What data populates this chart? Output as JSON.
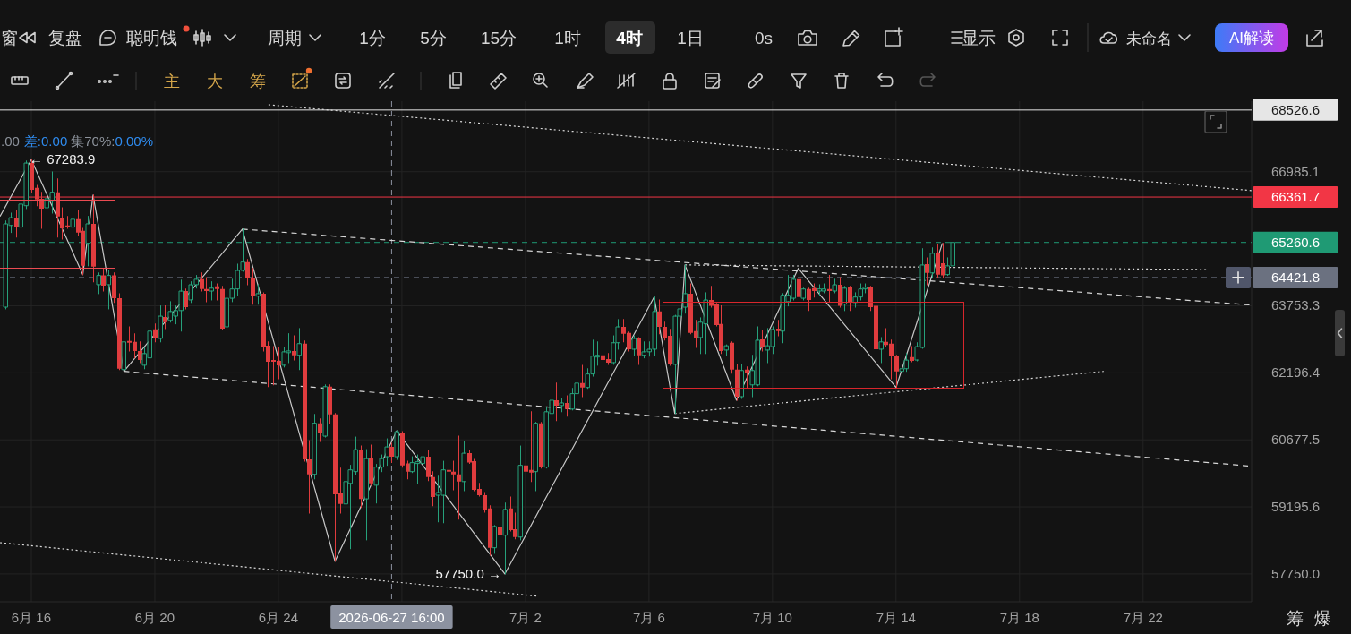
{
  "chart_data": {
    "type": "candlestick",
    "log": true,
    "grid": true,
    "xlim": [
      "2026-06-14T23:40",
      "2026-07-25T12:20"
    ],
    "ylim": [
      57160,
      68750
    ],
    "xticks": [
      {
        "value": "2026-06-16",
        "label": "6月 16"
      },
      {
        "value": "2026-06-20",
        "label": "6月 20"
      },
      {
        "value": "2026-06-24",
        "label": "6月 24"
      },
      {
        "value": "2026-06-28",
        "label": null
      },
      {
        "value": "2026-07-02",
        "label": "7月 2"
      },
      {
        "value": "2026-07-06",
        "label": "7月 6"
      },
      {
        "value": "2026-07-10",
        "label": "7月 10"
      },
      {
        "value": "2026-07-14",
        "label": "7月 14"
      },
      {
        "value": "2026-07-18",
        "label": "7月 18"
      },
      {
        "value": "2026-07-22",
        "label": "7月 22"
      }
    ],
    "yticks": [
      {
        "value": 57750,
        "label": "57750.0"
      },
      59195.6,
      60677.5,
      62196.4,
      63753.3,
      66985.1
    ],
    "x": [
      "2026-06-15T04:00",
      "2026-06-15T08:00",
      "2026-06-15T12:00",
      "2026-06-15T16:00",
      "2026-06-15T20:00",
      "2026-06-16T00:00",
      "2026-06-16T04:00",
      "2026-06-16T08:00",
      "2026-06-16T12:00",
      "2026-06-16T16:00",
      "2026-06-16T20:00",
      "2026-06-17T00:00",
      "2026-06-17T04:00",
      "2026-06-17T08:00",
      "2026-06-17T12:00",
      "2026-06-17T16:00",
      "2026-06-17T20:00",
      "2026-06-18T00:00",
      "2026-06-18T04:00",
      "2026-06-18T08:00",
      "2026-06-18T12:00",
      "2026-06-18T16:00",
      "2026-06-18T20:00",
      "2026-06-19T00:00",
      "2026-06-19T04:00",
      "2026-06-19T08:00",
      "2026-06-19T12:00",
      "2026-06-19T16:00",
      "2026-06-19T20:00",
      "2026-06-20T00:00",
      "2026-06-20T04:00",
      "2026-06-20T08:00",
      "2026-06-20T12:00",
      "2026-06-20T16:00",
      "2026-06-20T20:00",
      "2026-06-21T00:00",
      "2026-06-21T04:00",
      "2026-06-21T08:00",
      "2026-06-21T12:00",
      "2026-06-21T16:00",
      "2026-06-21T20:00",
      "2026-06-22T00:00",
      "2026-06-22T04:00",
      "2026-06-22T08:00",
      "2026-06-22T12:00",
      "2026-06-22T16:00",
      "2026-06-22T20:00",
      "2026-06-23T00:00",
      "2026-06-23T04:00",
      "2026-06-23T08:00",
      "2026-06-23T12:00",
      "2026-06-23T16:00",
      "2026-06-23T20:00",
      "2026-06-24T00:00",
      "2026-06-24T04:00",
      "2026-06-24T08:00",
      "2026-06-24T12:00",
      "2026-06-24T16:00",
      "2026-06-24T20:00",
      "2026-06-25T00:00",
      "2026-06-25T04:00",
      "2026-06-25T08:00",
      "2026-06-25T12:00",
      "2026-06-25T16:00",
      "2026-06-25T20:00",
      "2026-06-26T00:00",
      "2026-06-26T04:00",
      "2026-06-26T08:00",
      "2026-06-26T12:00",
      "2026-06-26T16:00",
      "2026-06-26T20:00",
      "2026-06-27T00:00",
      "2026-06-27T04:00",
      "2026-06-27T08:00",
      "2026-06-27T12:00",
      "2026-06-27T16:00",
      "2026-06-27T20:00",
      "2026-06-28T00:00",
      "2026-06-28T04:00",
      "2026-06-28T08:00",
      "2026-06-28T12:00",
      "2026-06-28T16:00",
      "2026-06-28T20:00",
      "2026-06-29T00:00",
      "2026-06-29T04:00",
      "2026-06-29T08:00",
      "2026-06-29T12:00",
      "2026-06-29T16:00",
      "2026-06-29T20:00",
      "2026-06-30T00:00",
      "2026-06-30T04:00",
      "2026-06-30T08:00",
      "2026-06-30T12:00",
      "2026-06-30T16:00",
      "2026-06-30T20:00",
      "2026-07-01T00:00",
      "2026-07-01T04:00",
      "2026-07-01T08:00",
      "2026-07-01T12:00",
      "2026-07-01T16:00",
      "2026-07-01T20:00",
      "2026-07-02T00:00",
      "2026-07-02T04:00",
      "2026-07-02T08:00",
      "2026-07-02T12:00",
      "2026-07-02T16:00",
      "2026-07-02T20:00",
      "2026-07-03T00:00",
      "2026-07-03T04:00",
      "2026-07-03T08:00",
      "2026-07-03T12:00",
      "2026-07-03T16:00",
      "2026-07-03T20:00",
      "2026-07-04T00:00",
      "2026-07-04T04:00",
      "2026-07-04T08:00",
      "2026-07-04T12:00",
      "2026-07-04T16:00",
      "2026-07-04T20:00",
      "2026-07-05T00:00",
      "2026-07-05T04:00",
      "2026-07-05T08:00",
      "2026-07-05T12:00",
      "2026-07-05T16:00",
      "2026-07-05T20:00",
      "2026-07-06T00:00",
      "2026-07-06T04:00",
      "2026-07-06T08:00",
      "2026-07-06T12:00",
      "2026-07-06T16:00",
      "2026-07-06T20:00",
      "2026-07-07T00:00",
      "2026-07-07T04:00",
      "2026-07-07T08:00",
      "2026-07-07T12:00",
      "2026-07-07T16:00",
      "2026-07-07T20:00",
      "2026-07-08T00:00",
      "2026-07-08T04:00",
      "2026-07-08T08:00",
      "2026-07-08T12:00",
      "2026-07-08T16:00",
      "2026-07-08T20:00",
      "2026-07-09T00:00",
      "2026-07-09T04:00",
      "2026-07-09T08:00",
      "2026-07-09T12:00",
      "2026-07-09T16:00",
      "2026-07-09T20:00",
      "2026-07-10T00:00",
      "2026-07-10T04:00",
      "2026-07-10T08:00",
      "2026-07-10T12:00",
      "2026-07-10T16:00",
      "2026-07-10T20:00",
      "2026-07-11T00:00",
      "2026-07-11T04:00",
      "2026-07-11T08:00",
      "2026-07-11T12:00",
      "2026-07-11T16:00",
      "2026-07-11T20:00",
      "2026-07-12T00:00",
      "2026-07-12T04:00",
      "2026-07-12T08:00",
      "2026-07-12T12:00",
      "2026-07-12T16:00",
      "2026-07-12T20:00",
      "2026-07-13T00:00",
      "2026-07-13T04:00",
      "2026-07-13T08:00",
      "2026-07-13T12:00",
      "2026-07-13T16:00",
      "2026-07-13T20:00",
      "2026-07-14T00:00",
      "2026-07-14T04:00",
      "2026-07-14T08:00",
      "2026-07-14T12:00",
      "2026-07-14T16:00",
      "2026-07-14T20:00",
      "2026-07-15T00:00",
      "2026-07-15T04:00",
      "2026-07-15T08:00",
      "2026-07-15T12:00",
      "2026-07-15T16:00",
      "2026-07-15T20:00"
    ],
    "ohlc": [
      [
        63720,
        65780,
        63680,
        65710
      ],
      [
        65670,
        65970,
        65500,
        65860
      ],
      [
        65860,
        66040,
        65390,
        65630
      ],
      [
        65630,
        66320,
        65450,
        66190
      ],
      [
        66150,
        67250,
        66080,
        67200
      ],
      [
        67200,
        67283.9,
        66480,
        66540
      ],
      [
        66590,
        66650,
        66150,
        66300
      ],
      [
        66320,
        66480,
        65600,
        66080
      ],
      [
        66100,
        66430,
        65760,
        66320
      ],
      [
        66260,
        66980,
        65970,
        66480
      ],
      [
        66480,
        66810,
        65390,
        65890
      ],
      [
        65860,
        66100,
        65340,
        65600
      ],
      [
        65670,
        65890,
        65600,
        65630
      ],
      [
        65630,
        66080,
        65450,
        65820
      ],
      [
        65820,
        66040,
        65430,
        65500
      ],
      [
        65540,
        65600,
        64490,
        64700
      ],
      [
        65240,
        65890,
        64700,
        65710
      ],
      [
        65710,
        66410,
        64320,
        64680
      ],
      [
        64250,
        64530,
        64040,
        64470
      ],
      [
        64470,
        64640,
        64100,
        64230
      ],
      [
        64250,
        64590,
        63680,
        64470
      ],
      [
        64470,
        64530,
        63830,
        63930
      ],
      [
        63930,
        64040,
        62270,
        62290
      ],
      [
        62270,
        62990,
        62230,
        62910
      ],
      [
        62930,
        63260,
        62700,
        62890
      ],
      [
        62910,
        63100,
        62540,
        62700
      ],
      [
        62700,
        62910,
        62430,
        62490
      ],
      [
        62370,
        62780,
        62290,
        62640
      ],
      [
        62540,
        63370,
        62490,
        63160
      ],
      [
        63200,
        63330,
        62910,
        62990
      ],
      [
        62990,
        63750,
        62910,
        63510
      ],
      [
        63490,
        63750,
        63220,
        63370
      ],
      [
        63410,
        63850,
        63370,
        63620
      ],
      [
        63510,
        63750,
        63330,
        63640
      ],
      [
        63640,
        64360,
        63160,
        64100
      ],
      [
        64100,
        64150,
        63680,
        63720
      ],
      [
        63890,
        64320,
        63830,
        64250
      ],
      [
        64250,
        64470,
        64170,
        64380
      ],
      [
        64380,
        64530,
        64100,
        64150
      ],
      [
        64150,
        64420,
        63850,
        64100
      ],
      [
        64100,
        64320,
        63890,
        64170
      ],
      [
        64210,
        64270,
        63890,
        64150
      ],
      [
        64150,
        64210,
        63200,
        63220
      ],
      [
        63260,
        64810,
        63240,
        63930
      ],
      [
        63930,
        64380,
        63850,
        64150
      ],
      [
        64150,
        64740,
        64000,
        64590
      ],
      [
        64590,
        65580,
        64570,
        64790
      ],
      [
        64790,
        64850,
        64250,
        64420
      ],
      [
        64420,
        64640,
        63790,
        63980
      ],
      [
        63980,
        64250,
        63790,
        64040
      ],
      [
        64040,
        64060,
        62700,
        62800
      ],
      [
        62820,
        62910,
        61880,
        62450
      ],
      [
        62490,
        62800,
        61920,
        62450
      ],
      [
        62470,
        62780,
        62060,
        62370
      ],
      [
        62370,
        62780,
        62330,
        62680
      ],
      [
        62660,
        63100,
        62430,
        62700
      ],
      [
        62700,
        63050,
        62490,
        62600
      ],
      [
        62600,
        63220,
        62270,
        62870
      ],
      [
        62870,
        62930,
        60200,
        60240
      ],
      [
        60240,
        60660,
        59060,
        59910
      ],
      [
        59910,
        61250,
        59810,
        61050
      ],
      [
        61050,
        61150,
        60640,
        60820
      ],
      [
        60760,
        61920,
        60740,
        61880
      ],
      [
        61880,
        61920,
        61050,
        61250
      ],
      [
        61250,
        61270,
        58020,
        59470
      ],
      [
        59510,
        60050,
        59060,
        59260
      ],
      [
        59260,
        60240,
        59220,
        59750
      ],
      [
        59710,
        60110,
        58290,
        60010
      ],
      [
        59970,
        60740,
        59910,
        60460
      ],
      [
        60460,
        60540,
        59180,
        59370
      ],
      [
        59370,
        60460,
        58480,
        60260
      ],
      [
        60260,
        60560,
        59670,
        59710
      ],
      [
        59670,
        60130,
        59280,
        60070
      ],
      [
        60070,
        60340,
        59970,
        60260
      ],
      [
        60300,
        60700,
        60110,
        60520
      ],
      [
        60520,
        60600,
        60170,
        60300
      ],
      [
        60300,
        60880,
        60240,
        60860
      ],
      [
        60840,
        60860,
        60070,
        60110
      ],
      [
        60150,
        60200,
        59810,
        59970
      ],
      [
        59970,
        60300,
        59950,
        60170
      ],
      [
        60150,
        60340,
        59710,
        60190
      ],
      [
        60150,
        60500,
        60070,
        60300
      ],
      [
        60300,
        60440,
        59770,
        59850
      ],
      [
        59850,
        59970,
        59220,
        59410
      ],
      [
        59450,
        59870,
        58870,
        59510
      ],
      [
        59450,
        60200,
        58850,
        60010
      ],
      [
        60010,
        60300,
        59570,
        59970
      ],
      [
        59970,
        60200,
        59570,
        59910
      ],
      [
        59910,
        60760,
        58930,
        59750
      ],
      [
        59750,
        60640,
        59550,
        60380
      ],
      [
        60380,
        60440,
        60150,
        60170
      ],
      [
        60200,
        60240,
        59550,
        59570
      ],
      [
        59590,
        59710,
        59430,
        59450
      ],
      [
        59450,
        59510,
        59080,
        59120
      ],
      [
        59160,
        59220,
        58150,
        58310
      ],
      [
        58310,
        58790,
        58190,
        58770
      ],
      [
        58770,
        58830,
        58500,
        58580
      ],
      [
        58580,
        59280,
        57750.0,
        59140
      ],
      [
        59160,
        59410,
        58670,
        58690
      ],
      [
        58710,
        59060,
        58500,
        58540
      ],
      [
        58540,
        60540,
        58480,
        60110
      ],
      [
        60110,
        60300,
        59750,
        59970
      ],
      [
        60010,
        61310,
        59750,
        59950
      ],
      [
        59970,
        61070,
        59550,
        61050
      ],
      [
        61050,
        61070,
        60050,
        60070
      ],
      [
        60070,
        61410,
        60050,
        61310
      ],
      [
        61270,
        62170,
        61150,
        61570
      ],
      [
        61570,
        61960,
        61110,
        61450
      ],
      [
        61450,
        61610,
        61310,
        61510
      ],
      [
        61510,
        61670,
        61210,
        61370
      ],
      [
        61370,
        61840,
        61350,
        61720
      ],
      [
        61720,
        62080,
        61510,
        61960
      ],
      [
        61960,
        62370,
        61650,
        61860
      ],
      [
        61860,
        62290,
        61840,
        62170
      ],
      [
        62170,
        62950,
        62120,
        62580
      ],
      [
        62560,
        62910,
        62370,
        62600
      ],
      [
        62600,
        62700,
        62290,
        62490
      ],
      [
        62510,
        62640,
        62390,
        62430
      ],
      [
        62430,
        63050,
        62390,
        62890
      ],
      [
        62890,
        63430,
        62740,
        63260
      ],
      [
        63260,
        63430,
        62910,
        63100
      ],
      [
        63120,
        63140,
        62700,
        62740
      ],
      [
        62740,
        63050,
        62600,
        62990
      ],
      [
        62990,
        63010,
        62390,
        62600
      ],
      [
        62600,
        62910,
        62540,
        62680
      ],
      [
        62680,
        62910,
        62580,
        62740
      ],
      [
        62740,
        63960,
        62600,
        63620
      ],
      [
        63620,
        63890,
        63100,
        63260
      ],
      [
        63260,
        63370,
        62950,
        63010
      ],
      [
        63050,
        63200,
        62370,
        62390
      ],
      [
        62390,
        63530,
        61270,
        63510
      ],
      [
        63510,
        63930,
        63430,
        63680
      ],
      [
        63720,
        64720,
        63580,
        64040
      ],
      [
        64040,
        64270,
        63100,
        63120
      ],
      [
        63160,
        63410,
        62780,
        63010
      ],
      [
        63010,
        63470,
        62640,
        63370
      ],
      [
        63330,
        64060,
        62640,
        63890
      ],
      [
        63890,
        64210,
        63720,
        63750
      ],
      [
        63790,
        63810,
        63280,
        63300
      ],
      [
        63330,
        63750,
        62640,
        62700
      ],
      [
        62720,
        62840,
        62600,
        62820
      ],
      [
        62890,
        62910,
        62190,
        62270
      ],
      [
        62270,
        62390,
        61570,
        61650
      ],
      [
        61650,
        62390,
        61610,
        62250
      ],
      [
        62270,
        62330,
        61860,
        62190
      ],
      [
        61920,
        62600,
        61650,
        62250
      ],
      [
        61920,
        63260,
        61900,
        62950
      ],
      [
        62970,
        63180,
        62700,
        62800
      ],
      [
        62720,
        63220,
        62430,
        62820
      ],
      [
        62800,
        63260,
        62640,
        63200
      ],
      [
        63220,
        63410,
        63050,
        63160
      ],
      [
        63160,
        64040,
        62890,
        64000
      ],
      [
        63850,
        64470,
        63750,
        64000
      ],
      [
        63930,
        64470,
        63890,
        64380
      ],
      [
        64380,
        64640,
        63930,
        63960
      ],
      [
        63930,
        64170,
        63890,
        64150
      ],
      [
        64150,
        64170,
        63640,
        63890
      ],
      [
        64170,
        64270,
        63960,
        64100
      ],
      [
        64100,
        64250,
        64000,
        64150
      ],
      [
        64100,
        64270,
        64060,
        64150
      ],
      [
        64150,
        64470,
        63850,
        64100
      ],
      [
        64100,
        64380,
        64060,
        64250
      ],
      [
        64250,
        64420,
        63720,
        63750
      ],
      [
        63790,
        64210,
        63640,
        64170
      ],
      [
        64190,
        64210,
        63640,
        63830
      ],
      [
        63830,
        64060,
        63720,
        63960
      ],
      [
        63960,
        64270,
        63890,
        64150
      ],
      [
        64150,
        64270,
        64060,
        64190
      ],
      [
        64190,
        64210,
        63640,
        63720
      ],
      [
        63750,
        64380,
        62700,
        62740
      ],
      [
        62740,
        63010,
        62430,
        62910
      ],
      [
        62910,
        63220,
        62800,
        62840
      ],
      [
        62870,
        62950,
        62060,
        62580
      ],
      [
        62580,
        62600,
        61860,
        62230
      ],
      [
        62230,
        62370,
        61880,
        62290
      ],
      [
        62290,
        62640,
        62230,
        62490
      ],
      [
        62560,
        62800,
        62450,
        62470
      ],
      [
        62490,
        62890,
        62470,
        62800
      ],
      [
        62780,
        65110,
        62760,
        64720
      ],
      [
        64740,
        64890,
        64250,
        64530
      ],
      [
        64530,
        65130,
        64420,
        65000
      ],
      [
        65000,
        65200,
        64420,
        64490
      ],
      [
        64760,
        65240,
        64420,
        64470
      ],
      [
        64490,
        64890,
        64470,
        64700
      ],
      [
        64700,
        65560,
        64570,
        65260.6
      ]
    ],
    "colors": [
      "#26a17b",
      "#26a17b",
      "#e03c3e",
      "#26a17b",
      "#26a17b",
      "#e03c3e",
      "#e03c3e",
      "#e03c3e",
      "#26a17b",
      "#26a17b",
      "#e03c3e",
      "#e03c3e",
      "#e03c3e",
      "#26a17b",
      "#e03c3e",
      "#e03c3e",
      "#26a17b",
      "#e03c3e",
      "#26a17b",
      "#e03c3e",
      "#26a17b",
      "#e03c3e",
      "#e03c3e",
      "#26a17b",
      "#e03c3e",
      "#e03c3e",
      "#e03c3e",
      "#26a17b",
      "#26a17b",
      "#e03c3e",
      "#26a17b",
      "#e03c3e",
      "#26a17b",
      "#26a17b",
      "#26a17b",
      "#e03c3e",
      "#26a17b",
      "#26a17b",
      "#e03c3e",
      "#e03c3e",
      "#26a17b",
      "#e03c3e",
      "#e03c3e",
      "#26a17b",
      "#26a17b",
      "#26a17b",
      "#26a17b",
      "#e03c3e",
      "#e03c3e",
      "#26a17b",
      "#e03c3e",
      "#e03c3e",
      "#e03c3e",
      "#e03c3e",
      "#26a17b",
      "#26a17b",
      "#e03c3e",
      "#26a17b",
      "#e03c3e",
      "#e03c3e",
      "#26a17b",
      "#e03c3e",
      "#26a17b",
      "#e03c3e",
      "#e03c3e",
      "#e03c3e",
      "#26a17b",
      "#26a17b",
      "#26a17b",
      "#e03c3e",
      "#26a17b",
      "#e03c3e",
      "#26a17b",
      "#26a17b",
      "#26a17b",
      "#e03c3e",
      "#26a17b",
      "#e03c3e",
      "#e03c3e",
      "#26a17b",
      "#26a17b",
      "#26a17b",
      "#e03c3e",
      "#e03c3e",
      "#26a17b",
      "#26a17b",
      "#e03c3e",
      "#e03c3e",
      "#e03c3e",
      "#26a17b",
      "#e03c3e",
      "#e03c3e",
      "#e03c3e",
      "#e03c3e",
      "#e03c3e",
      "#26a17b",
      "#e03c3e",
      "#26a17b",
      "#e03c3e",
      "#e03c3e",
      "#26a17b",
      "#e03c3e",
      "#e03c3e",
      "#26a17b",
      "#e03c3e",
      "#26a17b",
      "#26a17b",
      "#e03c3e",
      "#26a17b",
      "#e03c3e",
      "#26a17b",
      "#26a17b",
      "#e03c3e",
      "#26a17b",
      "#26a17b",
      "#26a17b",
      "#e03c3e",
      "#e03c3e",
      "#26a17b",
      "#26a17b",
      "#e03c3e",
      "#e03c3e",
      "#26a17b",
      "#e03c3e",
      "#26a17b",
      "#26a17b",
      "#26a17b",
      "#e03c3e",
      "#e03c3e",
      "#e03c3e",
      "#26a17b",
      "#26a17b",
      "#26a17b",
      "#e03c3e",
      "#e03c3e",
      "#26a17b",
      "#26a17b",
      "#e03c3e",
      "#e03c3e",
      "#e03c3e",
      "#26a17b",
      "#e03c3e",
      "#e03c3e",
      "#26a17b",
      "#e03c3e",
      "#26a17b",
      "#26a17b",
      "#e03c3e",
      "#26a17b",
      "#26a17b",
      "#e03c3e",
      "#26a17b",
      "#26a17b",
      "#26a17b",
      "#e03c3e",
      "#26a17b",
      "#e03c3e",
      "#e03c3e",
      "#26a17b",
      "#26a17b",
      "#e03c3e",
      "#26a17b",
      "#e03c3e",
      "#26a17b",
      "#e03c3e",
      "#26a17b",
      "#26a17b",
      "#26a17b",
      "#e03c3e",
      "#e03c3e",
      "#26a17b",
      "#e03c3e",
      "#e03c3e",
      "#e03c3e",
      "#26a17b",
      "#26a17b",
      "#e03c3e",
      "#26a17b",
      "#26a17b",
      "#e03c3e",
      "#26a17b",
      "#e03c3e",
      "#e03c3e",
      "#26a17b",
      "#26a17b"
    ],
    "series": [
      {
        "type": "line",
        "color": "#c8c8c8",
        "line_style": "solid",
        "x": [
          "2026-06-14T23:40",
          "2026-06-16T00:00",
          "2026-06-17T16:00",
          "2026-06-18T00:00",
          "2026-06-19T00:00",
          "2026-06-22T20:00",
          "2026-06-25T20:00",
          "2026-06-27T20:00",
          "2026-07-01T08:00",
          "2026-07-06T04:00",
          "2026-07-06T20:00",
          "2026-07-07T04:00",
          "2026-07-08T20:00",
          "2026-07-10T20:00",
          "2026-07-14T00:00",
          "2026-07-15T12:00"
        ],
        "values": [
          65890,
          67283.9,
          64490,
          66410,
          62230,
          65580,
          58020,
          60880,
          57750.0,
          63960,
          61270,
          64720,
          61570,
          64640,
          61860,
          65240
        ]
      },
      {
        "type": "line",
        "color": "#d9d9d9",
        "line_style": "dotted",
        "x": [
          "2026-06-23T16:20",
          "2026-07-25T12:20"
        ],
        "values": [
          68660,
          66520
        ]
      },
      {
        "type": "line",
        "color": "#d9d9d9",
        "line_style": "dashed",
        "x": [
          "2026-06-22T20:00",
          "2026-07-25T12:20"
        ],
        "values": [
          65580,
          63770
        ]
      },
      {
        "type": "line",
        "color": "#d9d9d9",
        "line_style": "dashed",
        "x": [
          "2026-06-19T00:00",
          "2026-07-25T12:20"
        ],
        "values": [
          62230,
          60090
        ]
      },
      {
        "type": "line",
        "color": "#d9d9d9",
        "line_style": "dotted",
        "x": [
          "2026-06-14T23:40",
          "2026-07-02T09:00"
        ],
        "values": [
          58420,
          57280
        ]
      },
      {
        "type": "line",
        "color": "#d9d9d9",
        "line_style": "dotted",
        "x": [
          "2026-07-06T20:00",
          "2026-07-20T17:20"
        ],
        "values": [
          61270,
          62230
        ]
      },
      {
        "type": "line",
        "color": "#d9d9d9",
        "line_style": "dotted",
        "x": [
          "2026-07-07T04:00",
          "2026-07-24T01:20"
        ],
        "values": [
          64720,
          64610
        ]
      },
      {
        "type": "line",
        "color": "#eb4b52",
        "line_style": "solid",
        "x": [
          "2026-06-14T23:40",
          "2026-06-18T16:40",
          "2026-06-18T16:40",
          "2026-06-14T23:40"
        ],
        "values": [
          66300,
          66300,
          64660,
          64660
        ]
      },
      {
        "type": "line",
        "color": "#d8262c",
        "line_style": "solid",
        "x": [
          "2026-07-06T10:30",
          "2026-07-16T04:10",
          "2026-07-16T04:10",
          "2026-07-06T10:30"
        ],
        "values": [
          63850,
          63850,
          61860,
          61860
        ]
      },
      {
        "type": "line",
        "color": "#d8262c",
        "line_style": "solid",
        "x": [
          "2026-07-06T10:30",
          "2026-07-06T10:30"
        ],
        "values": [
          63850,
          61860
        ]
      }
    ],
    "ref_lines": [
      {
        "axis": "y",
        "value": 68526.6,
        "label": "68526.6",
        "color": "#e6e6e6",
        "line_style": "solid"
      },
      {
        "axis": "y",
        "value": 66361.7,
        "label": "66361.7",
        "color": "#f23645",
        "line_style": "solid"
      },
      {
        "axis": "y",
        "value": 65260.6,
        "label": "65260.6",
        "color": "#1f9a74",
        "line_style": "dashed"
      },
      {
        "axis": "y",
        "value": 64421.8,
        "label": "64421.8",
        "color": "#6b7180",
        "line_style": "dashed"
      },
      {
        "axis": "x",
        "value": "2026-06-27T16:00",
        "label": "2026-06-27 16:00",
        "color": "#8c92a0",
        "line_style": "dashed"
      }
    ],
    "annotations": [
      {
        "text": "← 67283.9",
        "x": "2026-06-16T00:00",
        "y": 67283.9
      },
      {
        "text": "57750.0 →",
        "x": "2026-07-01T08:00",
        "y": 57750.0
      },
      ".00",
      "差:0.00",
      "集70%:",
      "0.00%",
      "窗",
      "复盘",
      "聪明钱",
      "周期",
      "1分",
      "5分",
      "15分",
      "1时",
      "4时",
      "1日",
      "0s",
      "显示",
      "未命名",
      "AI解读",
      "主",
      "大",
      "筹",
      "筹",
      "爆"
    ]
  }
}
